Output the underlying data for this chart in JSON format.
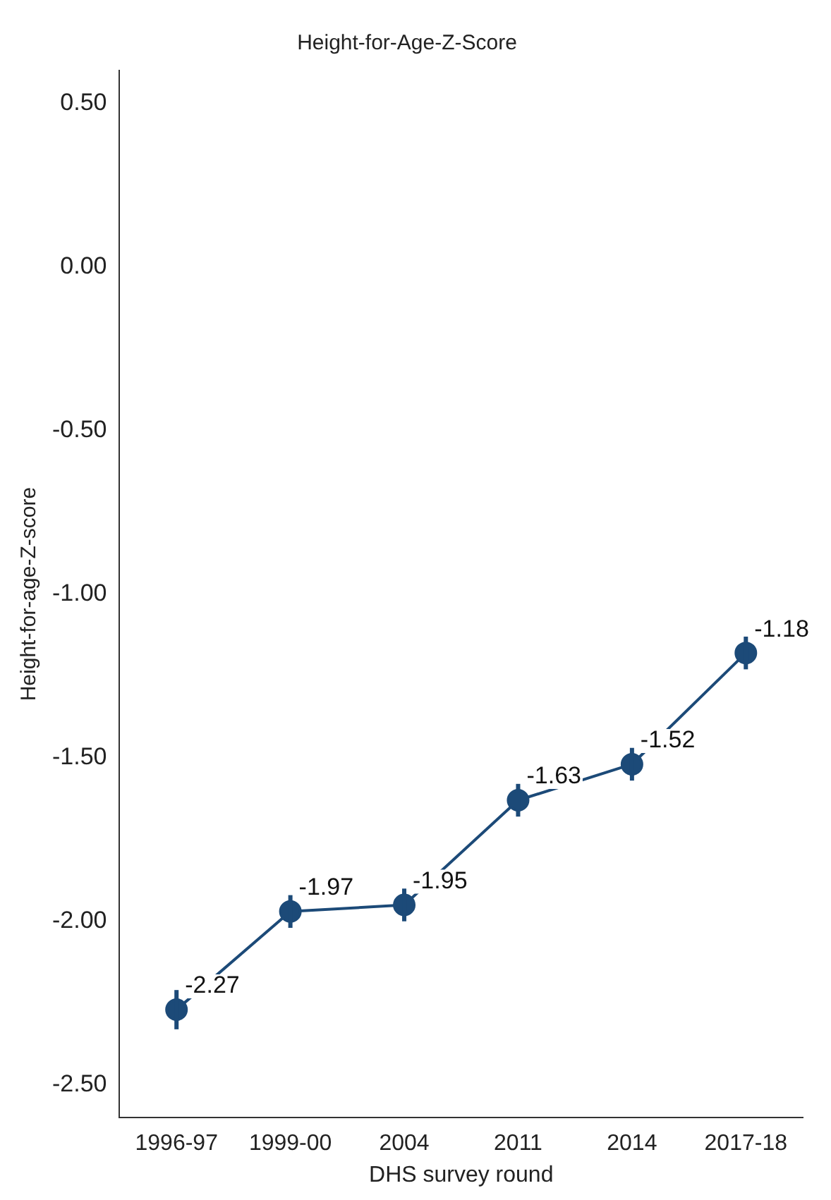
{
  "chart_data": {
    "type": "line",
    "title": "Height-for-Age-Z-Score",
    "xlabel": "DHS survey round",
    "ylabel": "Height-for-age-Z-score",
    "categories": [
      "1996-97",
      "1999-00",
      "2004",
      "2011",
      "2014",
      "2017-18"
    ],
    "series": [
      {
        "color": "#1c4a78",
        "values": [
          -2.27,
          -1.97,
          -1.95,
          -1.63,
          -1.52,
          -1.18
        ],
        "errors": [
          0.06,
          0.05,
          0.05,
          0.05,
          0.05,
          0.05
        ]
      }
    ],
    "ylim": [
      -2.6,
      0.6
    ],
    "yticks": [
      {
        "value": -2.5,
        "label": "-2.50"
      },
      {
        "value": -2,
        "label": "-2.00"
      },
      {
        "value": -1.5,
        "label": "-1.50"
      },
      {
        "value": -1,
        "label": "-1.00"
      },
      {
        "value": -0.5,
        "label": "-0.50"
      },
      {
        "value": 0,
        "label": "0.00"
      },
      {
        "value": 0.5,
        "label": "0.50"
      }
    ],
    "grid": false,
    "legend": false,
    "marker": "circle",
    "line_style": "solid",
    "data_labels": true
  }
}
